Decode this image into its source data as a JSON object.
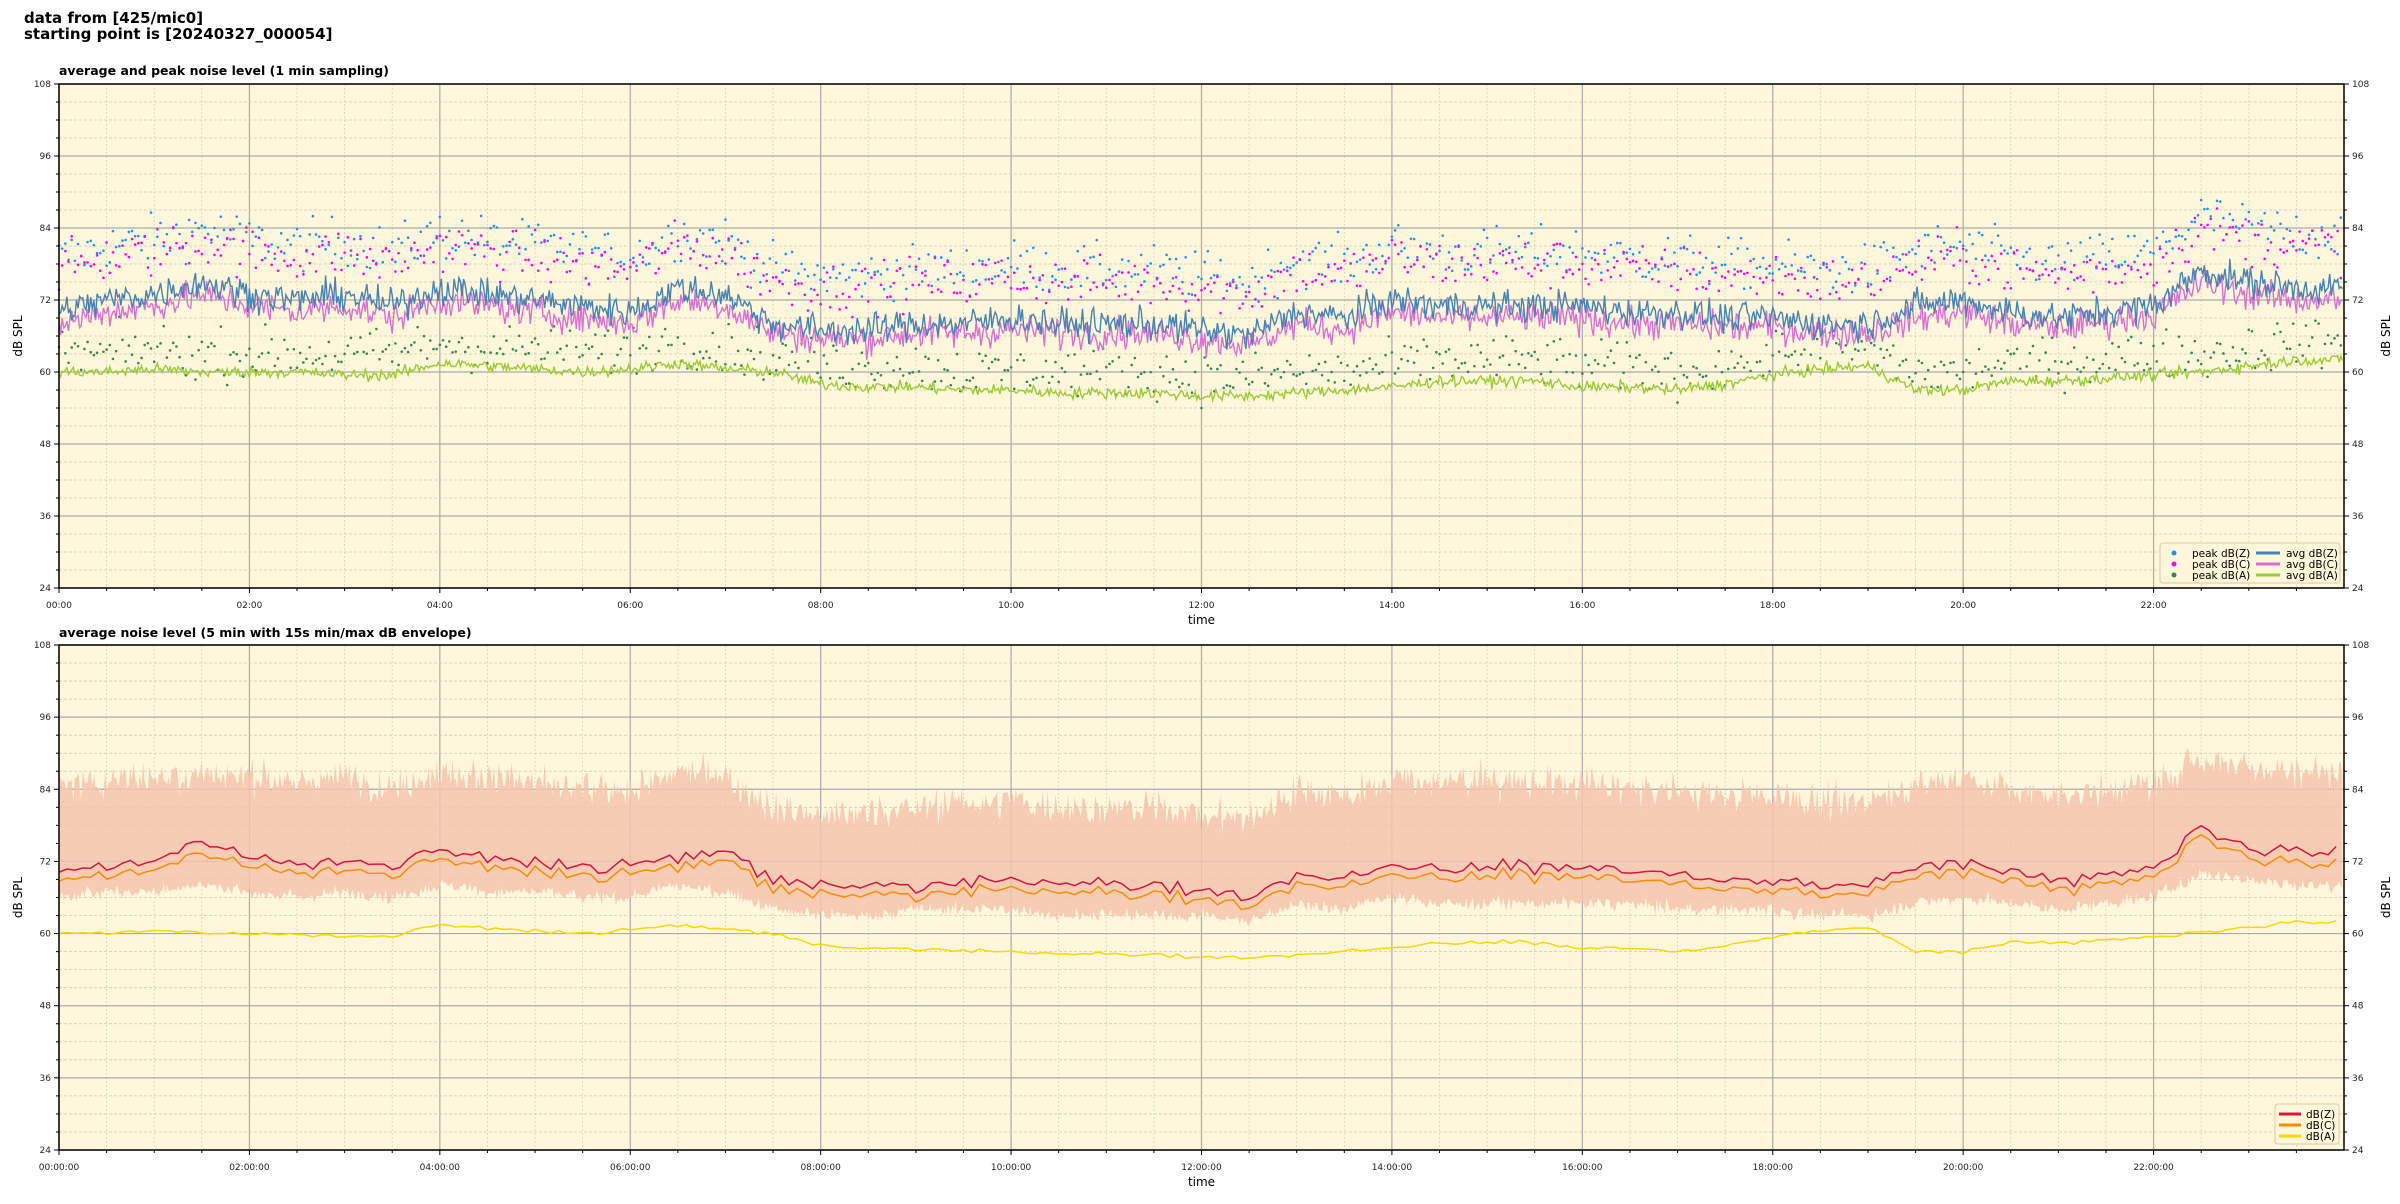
{
  "suptitle": [
    "data from [425/mic0]",
    "starting point is [20240327_000054]"
  ],
  "colors": {
    "background": "#fff7dc",
    "peak_z": "#1e90ff",
    "peak_c": "#ff00ff",
    "peak_a": "#2e8b57",
    "avg_z": "#4682b4",
    "avg_c": "#da70d6",
    "avg_a": "#9acd32",
    "db_z": "#dc143c",
    "db_c": "#ff8c00",
    "db_a": "#ffd700",
    "envelope": "#f5c4ae"
  },
  "chart_data": [
    {
      "type": "line+scatter",
      "title": "average and peak noise level (1 min sampling)",
      "xlabel": "time",
      "ylabel": "dB SPL",
      "ylim": [
        24,
        108
      ],
      "yticks": [
        "24",
        "36",
        "48",
        "60",
        "72",
        "84",
        "96",
        "108"
      ],
      "xlim_hours": [
        0,
        24
      ],
      "xticks": [
        "00:00",
        "02:00",
        "04:00",
        "06:00",
        "08:00",
        "10:00",
        "12:00",
        "14:00",
        "16:00",
        "18:00",
        "20:00",
        "22:00"
      ],
      "grid": true,
      "legend_position": "lower-right",
      "x_step": "30 min",
      "series": [
        {
          "name": "peak dB(Z)",
          "kind": "scatter",
          "values": [
            79,
            81,
            82,
            84,
            82,
            81,
            82,
            80,
            83,
            82,
            81,
            80,
            79,
            83,
            82,
            77,
            76,
            76,
            77,
            77,
            78,
            77,
            77,
            77,
            76,
            75,
            79,
            78,
            81,
            80,
            80,
            80,
            80,
            79,
            79,
            78,
            78,
            77,
            77,
            80,
            81,
            79,
            78,
            79,
            80,
            86,
            84,
            83
          ]
        },
        {
          "name": "peak dB(C)",
          "kind": "scatter",
          "values": [
            77,
            79,
            80,
            82,
            80,
            79,
            80,
            78,
            81,
            80,
            79,
            78,
            77,
            81,
            80,
            75,
            74,
            74,
            75,
            75,
            76,
            75,
            75,
            75,
            74,
            73,
            77,
            76,
            79,
            78,
            78,
            78,
            78,
            77,
            77,
            76,
            76,
            75,
            75,
            78,
            79,
            77,
            76,
            77,
            78,
            84,
            82,
            81
          ]
        },
        {
          "name": "peak dB(A)",
          "kind": "scatter",
          "values": [
            63,
            63,
            64,
            63,
            63,
            63,
            63,
            63,
            65,
            64,
            64,
            63,
            64,
            65,
            64,
            63,
            61,
            61,
            61,
            60,
            60,
            60,
            60,
            60,
            59,
            59,
            60,
            60,
            61,
            62,
            62,
            62,
            61,
            61,
            60,
            61,
            63,
            64,
            64,
            60,
            60,
            62,
            62,
            62,
            63,
            63,
            64,
            65
          ]
        },
        {
          "name": "avg dB(Z)",
          "kind": "line",
          "values": [
            70,
            72,
            73,
            75,
            73,
            72,
            73,
            71,
            74,
            73,
            72,
            71,
            70,
            74,
            73,
            68,
            67,
            67,
            68,
            68,
            69,
            68,
            68,
            68,
            67,
            66,
            70,
            69,
            72,
            71,
            71,
            71,
            71,
            70,
            70,
            69,
            69,
            68,
            68,
            71,
            72,
            70,
            69,
            70,
            71,
            77,
            75,
            74
          ]
        },
        {
          "name": "avg dB(C)",
          "kind": "line",
          "values": [
            68,
            70,
            71,
            73,
            71,
            70,
            71,
            69,
            72,
            71,
            70,
            69,
            68,
            72,
            71,
            66.5,
            65.5,
            65.5,
            66.5,
            66.5,
            67,
            66.5,
            66.5,
            66.5,
            65.5,
            64.5,
            68,
            67,
            70,
            69,
            69,
            69,
            69,
            68,
            68,
            67.5,
            67.5,
            66.5,
            66.5,
            69,
            70,
            68,
            67.5,
            68.5,
            69.5,
            75,
            73,
            72
          ]
        },
        {
          "name": "avg dB(A)",
          "kind": "line",
          "values": [
            60,
            60,
            60.5,
            60,
            60,
            60,
            59.5,
            59.5,
            61.5,
            61,
            60.5,
            60,
            60.5,
            61.5,
            60.5,
            60,
            58,
            57.5,
            57.5,
            57,
            57,
            56.5,
            56.5,
            56.5,
            56,
            56,
            56.5,
            57,
            57.5,
            58.5,
            58.5,
            58.5,
            57.5,
            57.5,
            57,
            58,
            59.5,
            60.5,
            61,
            57,
            57,
            58.5,
            58.5,
            59,
            59.5,
            60,
            61,
            62
          ]
        }
      ]
    },
    {
      "type": "line+area",
      "title": "average noise level (5 min with 15s min/max dB envelope)",
      "xlabel": "time",
      "ylabel": "dB SPL",
      "ylim": [
        24,
        108
      ],
      "yticks": [
        "24",
        "36",
        "48",
        "60",
        "72",
        "84",
        "96",
        "108"
      ],
      "xlim_hours": [
        0,
        24
      ],
      "xticks": [
        "00:00:00",
        "02:00:00",
        "04:00:00",
        "06:00:00",
        "08:00:00",
        "10:00:00",
        "12:00:00",
        "14:00:00",
        "16:00:00",
        "18:00:00",
        "20:00:00",
        "22:00:00"
      ],
      "grid": true,
      "legend_position": "lower-right",
      "x_step": "30 min",
      "envelope": {
        "max": [
          84,
          86,
          86,
          87,
          86,
          85,
          86,
          84,
          87,
          86,
          85,
          84,
          84,
          87,
          86,
          81,
          80,
          80,
          81,
          82,
          82,
          81,
          81,
          81,
          80,
          79,
          84,
          83,
          86,
          85,
          86,
          85,
          85,
          84,
          84,
          83,
          83,
          82,
          82,
          85,
          86,
          84,
          83,
          84,
          85,
          89,
          88,
          87
        ],
        "min": [
          66,
          67,
          67,
          68,
          67,
          66,
          67,
          66,
          68,
          67,
          67,
          66,
          66,
          68,
          67,
          64,
          63,
          63,
          64,
          64,
          64,
          63,
          63,
          63,
          63,
          62,
          65,
          64,
          66,
          65,
          65,
          65,
          65,
          65,
          64,
          64,
          64,
          63,
          63,
          65,
          66,
          65,
          64,
          65,
          66,
          70,
          69,
          68
        ]
      },
      "series": [
        {
          "name": "dB(Z)",
          "values": [
            70,
            71,
            72,
            75,
            73,
            72,
            72,
            71,
            74,
            73,
            72,
            71,
            71,
            73,
            73,
            69,
            68,
            68,
            68,
            68,
            69,
            68,
            68,
            68,
            67,
            66,
            70,
            69,
            71,
            71,
            71,
            71,
            71,
            70,
            70,
            69,
            69,
            68,
            68,
            71,
            72,
            70,
            69,
            70,
            71,
            77,
            74,
            74
          ]
        },
        {
          "name": "dB(C)",
          "values": [
            68.5,
            69.5,
            70.5,
            73,
            71.5,
            70.5,
            70.5,
            69.5,
            72.5,
            71.5,
            70.5,
            69.5,
            69.5,
            71.5,
            71.5,
            67.5,
            66.5,
            66.5,
            66.5,
            66.5,
            67.5,
            66.5,
            66.5,
            66.5,
            65.5,
            64.5,
            68.5,
            67.5,
            69.5,
            69.5,
            69.5,
            69.5,
            69.5,
            68.5,
            68.5,
            67.5,
            67.5,
            66.5,
            66.5,
            69.5,
            70.5,
            68.5,
            67.5,
            68.5,
            69.5,
            75.5,
            72.5,
            72
          ]
        },
        {
          "name": "dB(A)",
          "values": [
            60,
            60,
            60.5,
            60,
            60,
            60,
            59.5,
            59.5,
            61.5,
            61,
            60.5,
            60,
            60.5,
            61.5,
            60.5,
            60,
            58,
            57.5,
            57.5,
            57,
            57,
            56.5,
            56.5,
            56.5,
            56,
            56,
            56.5,
            57,
            57.5,
            58.5,
            58.5,
            58.5,
            57.5,
            57.5,
            57,
            58,
            59.5,
            60.5,
            61,
            57,
            57,
            58.5,
            58.5,
            59,
            59.5,
            60,
            61,
            62
          ]
        }
      ]
    }
  ]
}
